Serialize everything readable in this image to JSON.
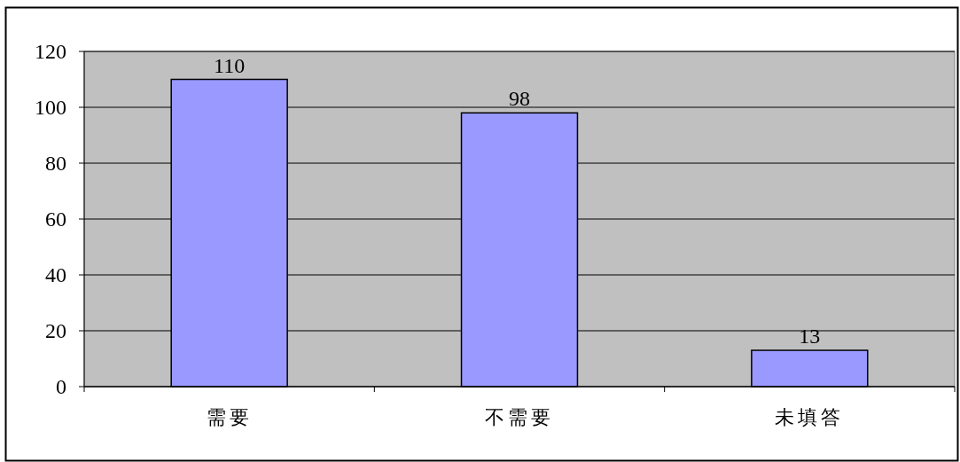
{
  "chart_data": {
    "type": "bar",
    "categories": [
      "需要",
      "不需要",
      "未填答"
    ],
    "values": [
      110,
      98,
      13
    ],
    "color": "#9999ff",
    "ylim": [
      0,
      120
    ],
    "yticks": [
      0,
      20,
      40,
      60,
      80,
      100,
      120
    ],
    "grid": "y",
    "data_labels": true
  }
}
